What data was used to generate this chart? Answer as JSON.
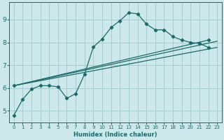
{
  "xlabel": "Humidex (Indice chaleur)",
  "bg_color": "#cce8ea",
  "grid_color": "#a0c8cc",
  "line_color": "#1a6b6b",
  "xlim": [
    -0.5,
    23.5
  ],
  "ylim": [
    4.5,
    9.75
  ],
  "yticks": [
    5,
    6,
    7,
    8,
    9
  ],
  "xticks": [
    0,
    1,
    2,
    3,
    4,
    5,
    6,
    7,
    8,
    9,
    10,
    11,
    12,
    13,
    14,
    15,
    16,
    17,
    18,
    19,
    20,
    21,
    22,
    23
  ],
  "curve1_x": [
    0,
    1,
    2,
    3,
    4,
    5,
    6,
    7,
    8,
    9,
    10,
    11,
    12,
    13,
    14,
    15,
    16,
    17,
    18,
    19,
    20,
    21,
    22
  ],
  "curve1_y": [
    4.8,
    5.5,
    5.95,
    6.1,
    6.1,
    6.05,
    5.55,
    5.75,
    6.6,
    7.8,
    8.15,
    8.65,
    8.95,
    9.3,
    9.25,
    8.8,
    8.55,
    8.55,
    8.25,
    8.1,
    8.0,
    7.95,
    7.78
  ],
  "line2_x": [
    0,
    23
  ],
  "line2_y": [
    6.1,
    7.78
  ],
  "line3_x": [
    0,
    23
  ],
  "line3_y": [
    6.1,
    8.05
  ],
  "line4_x": [
    0,
    22
  ],
  "line4_y": [
    6.1,
    8.1
  ]
}
